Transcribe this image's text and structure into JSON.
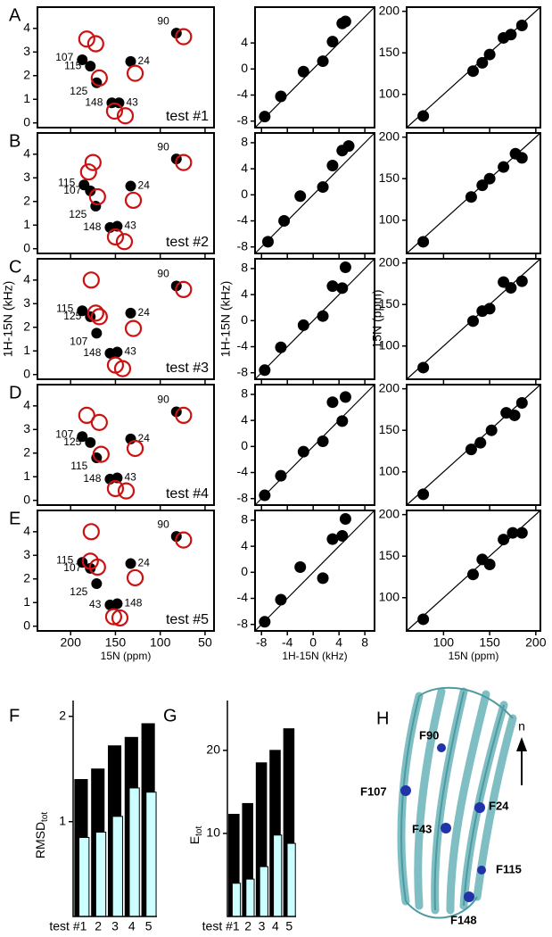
{
  "chart_data": [
    {
      "type": "scatter",
      "panel": "A",
      "annotation": "test #1",
      "xlim": [
        237,
        40
      ],
      "ylim": [
        -0.2,
        4.9
      ],
      "xticks": [
        200,
        150,
        100,
        50
      ],
      "yticks": [
        0,
        1,
        2,
        3,
        4
      ],
      "xtick_labels": false,
      "series": [
        {
          "color": "#000000",
          "marker": "filled",
          "x": [
            82,
            133,
            187,
            178,
            171,
            154,
            146
          ],
          "values": [
            3.8,
            2.6,
            2.67,
            2.4,
            1.7,
            0.85,
            0.85
          ],
          "labels": [
            "90",
            "24",
            "107",
            "115",
            "125",
            "148",
            "43"
          ]
        },
        {
          "color": "#cc1111",
          "marker": "open",
          "x": [
            74,
            182,
            172,
            128,
            168,
            151,
            139
          ],
          "values": [
            3.65,
            3.55,
            3.35,
            2.1,
            1.9,
            0.5,
            0.3
          ]
        }
      ]
    },
    {
      "type": "scatter",
      "xlim": [
        -9,
        9.5
      ],
      "ylim": [
        -9,
        9.5
      ],
      "xticks": [
        -8,
        -4,
        0,
        4,
        8
      ],
      "yticks": [
        -8,
        -4,
        0,
        4
      ],
      "xtick_labels": false,
      "diagonal": true,
      "series": [
        {
          "color": "#000000",
          "marker": "filled",
          "x": [
            -7.5,
            -5,
            -1.5,
            1.5,
            3,
            4.5,
            5
          ],
          "values": [
            -7.3,
            -4.2,
            -0.4,
            1.2,
            4.2,
            7.0,
            7.3
          ]
        }
      ]
    },
    {
      "type": "scatter",
      "xlim": [
        60,
        205
      ],
      "ylim": [
        60,
        205
      ],
      "xticks": [
        100,
        150,
        200
      ],
      "yticks": [
        100,
        150,
        200
      ],
      "xtick_labels": false,
      "diagonal": true,
      "series": [
        {
          "color": "#000000",
          "marker": "filled",
          "x": [
            78,
            132,
            142,
            150,
            165,
            173,
            185
          ],
          "values": [
            74,
            128,
            138,
            148,
            168,
            172,
            183
          ]
        }
      ]
    },
    {
      "type": "scatter",
      "panel": "B",
      "annotation": "test #2",
      "xlim": [
        237,
        40
      ],
      "ylim": [
        -0.2,
        4.9
      ],
      "xticks": [
        200,
        150,
        100,
        50
      ],
      "yticks": [
        0,
        1,
        2,
        3,
        4
      ],
      "xtick_labels": false,
      "series": [
        {
          "color": "#000000",
          "marker": "filled",
          "x": [
            82,
            133,
            185,
            178,
            172,
            156,
            148
          ],
          "values": [
            3.8,
            2.65,
            2.7,
            2.45,
            1.8,
            0.9,
            0.95
          ],
          "labels": [
            "90",
            "24",
            "115",
            "107",
            "125",
            "148",
            "43"
          ]
        },
        {
          "color": "#cc1111",
          "marker": "open",
          "x": [
            74,
            175,
            180,
            130,
            170,
            150,
            140
          ],
          "values": [
            3.65,
            3.65,
            3.25,
            2.05,
            2.2,
            0.5,
            0.3
          ]
        }
      ]
    },
    {
      "type": "scatter",
      "xlim": [
        -9,
        9.5
      ],
      "ylim": [
        -9,
        9.5
      ],
      "xticks": [
        -8,
        -4,
        0,
        4,
        8
      ],
      "yticks": [
        -8,
        -4,
        0,
        4,
        8
      ],
      "xtick_labels": false,
      "diagonal": true,
      "series": [
        {
          "color": "#000000",
          "marker": "filled",
          "x": [
            -7,
            -4.5,
            -2,
            1.5,
            3,
            4.5,
            5.5
          ],
          "values": [
            -7.2,
            -4,
            -0.2,
            1.2,
            4.5,
            6.8,
            7.5
          ]
        }
      ]
    },
    {
      "type": "scatter",
      "xlim": [
        60,
        205
      ],
      "ylim": [
        60,
        205
      ],
      "xticks": [
        100,
        150,
        200
      ],
      "yticks": [
        100,
        150,
        200
      ],
      "xtick_labels": false,
      "diagonal": true,
      "series": [
        {
          "color": "#000000",
          "marker": "filled",
          "x": [
            78,
            130,
            142,
            150,
            165,
            178,
            185
          ],
          "values": [
            74,
            128,
            142,
            150,
            164,
            180,
            175
          ]
        }
      ]
    },
    {
      "type": "scatter",
      "panel": "C",
      "annotation": "test #3",
      "ylabel": "1H-15N (kHz)",
      "xlim": [
        237,
        40
      ],
      "ylim": [
        -0.2,
        4.9
      ],
      "xticks": [
        200,
        150,
        100,
        50
      ],
      "yticks": [
        0,
        1,
        2,
        3,
        4
      ],
      "xtick_labels": false,
      "series": [
        {
          "color": "#000000",
          "marker": "filled",
          "x": [
            82,
            133,
            187,
            178,
            171,
            156,
            148
          ],
          "values": [
            3.75,
            2.6,
            2.7,
            2.45,
            1.75,
            0.9,
            0.95
          ],
          "labels": [
            "90",
            "24",
            "115",
            "125",
            "107",
            "148",
            "43"
          ]
        },
        {
          "color": "#cc1111",
          "marker": "open",
          "x": [
            74,
            177,
            172,
            130,
            168,
            150,
            142
          ],
          "values": [
            3.6,
            4.0,
            2.6,
            1.95,
            2.45,
            0.4,
            0.25
          ]
        }
      ]
    },
    {
      "type": "scatter",
      "ylabel": "1H-15N (kHz)",
      "xlim": [
        -9,
        9.5
      ],
      "ylim": [
        -9,
        9.5
      ],
      "xticks": [
        -8,
        -4,
        0,
        4,
        8
      ],
      "yticks": [
        -8,
        -4,
        0,
        4,
        8
      ],
      "xtick_labels": false,
      "diagonal": true,
      "series": [
        {
          "color": "#000000",
          "marker": "filled",
          "x": [
            -7.5,
            -5,
            -1.5,
            1.5,
            3,
            4.5,
            5
          ],
          "values": [
            -7.6,
            -4.1,
            -0.7,
            0.7,
            5.3,
            5,
            8.2
          ]
        }
      ]
    },
    {
      "type": "scatter",
      "ylabel": "15N (ppm)",
      "xlim": [
        60,
        205
      ],
      "ylim": [
        60,
        205
      ],
      "xticks": [
        100,
        150,
        200
      ],
      "yticks": [
        100,
        150,
        200
      ],
      "xtick_labels": false,
      "diagonal": true,
      "series": [
        {
          "color": "#000000",
          "marker": "filled",
          "x": [
            78,
            132,
            142,
            150,
            165,
            173,
            185
          ],
          "values": [
            74,
            130,
            142,
            145,
            177,
            170,
            178
          ]
        }
      ]
    },
    {
      "type": "scatter",
      "panel": "D",
      "annotation": "test #4",
      "xlim": [
        237,
        40
      ],
      "ylim": [
        -0.2,
        4.9
      ],
      "xticks": [
        200,
        150,
        100,
        50
      ],
      "yticks": [
        0,
        1,
        2,
        3,
        4
      ],
      "xtick_labels": false,
      "series": [
        {
          "color": "#000000",
          "marker": "filled",
          "x": [
            82,
            133,
            187,
            178,
            171,
            156,
            148
          ],
          "values": [
            3.75,
            2.6,
            2.7,
            2.45,
            1.8,
            0.9,
            0.95
          ],
          "labels": [
            "90",
            "24",
            "107",
            "125",
            "115",
            "148",
            "43"
          ]
        },
        {
          "color": "#cc1111",
          "marker": "open",
          "x": [
            74,
            182,
            168,
            128,
            166,
            150,
            138
          ],
          "values": [
            3.6,
            3.6,
            3.3,
            2.2,
            1.95,
            0.5,
            0.4
          ]
        }
      ]
    },
    {
      "type": "scatter",
      "xlim": [
        -9,
        9.5
      ],
      "ylim": [
        -9,
        9.5
      ],
      "xticks": [
        -8,
        -4,
        0,
        4,
        8
      ],
      "yticks": [
        -8,
        -4,
        0,
        4,
        8
      ],
      "xtick_labels": false,
      "diagonal": true,
      "series": [
        {
          "color": "#000000",
          "marker": "filled",
          "x": [
            -7.5,
            -5,
            -1.5,
            1.5,
            3,
            4.5,
            5
          ],
          "values": [
            -7.5,
            -4.5,
            -0.8,
            0.8,
            6.8,
            3.9,
            7.6
          ]
        }
      ]
    },
    {
      "type": "scatter",
      "xlim": [
        60,
        205
      ],
      "ylim": [
        60,
        205
      ],
      "xticks": [
        100,
        150,
        200
      ],
      "yticks": [
        100,
        150,
        200
      ],
      "xtick_labels": false,
      "diagonal": true,
      "series": [
        {
          "color": "#000000",
          "marker": "filled",
          "x": [
            78,
            130,
            140,
            152,
            168,
            177,
            185
          ],
          "values": [
            73,
            127,
            135,
            150,
            171,
            168,
            183
          ]
        }
      ]
    },
    {
      "type": "scatter",
      "panel": "E",
      "annotation": "test #5",
      "xlabel": "15N (ppm)",
      "xlim": [
        237,
        40
      ],
      "ylim": [
        -0.2,
        4.9
      ],
      "xticks": [
        200,
        150,
        100,
        50
      ],
      "yticks": [
        0,
        1,
        2,
        3,
        4
      ],
      "xtick_labels": true,
      "series": [
        {
          "color": "#000000",
          "marker": "filled",
          "x": [
            82,
            133,
            187,
            178,
            171,
            156,
            148
          ],
          "values": [
            3.8,
            2.65,
            2.7,
            2.45,
            1.8,
            0.9,
            0.95
          ],
          "labels": [
            "90",
            "24",
            "115",
            "107",
            "125",
            "43",
            "148"
          ]
        },
        {
          "color": "#cc1111",
          "marker": "open",
          "x": [
            74,
            177,
            178,
            128,
            170,
            152,
            145
          ],
          "values": [
            3.65,
            4.0,
            2.75,
            2.05,
            2.5,
            0.4,
            0.35
          ]
        }
      ]
    },
    {
      "type": "scatter",
      "xlabel": "1H-15N (kHz)",
      "xlim": [
        -9,
        9.5
      ],
      "ylim": [
        -9,
        9.5
      ],
      "xticks": [
        -8,
        -4,
        0,
        4,
        8
      ],
      "yticks": [
        -8,
        -4,
        0,
        4,
        8
      ],
      "xtick_labels": true,
      "diagonal": true,
      "series": [
        {
          "color": "#000000",
          "marker": "filled",
          "x": [
            -7.5,
            -5,
            -2,
            1.5,
            3,
            4.5,
            5
          ],
          "values": [
            -7.6,
            -4.2,
            0.8,
            -0.9,
            5.1,
            5.6,
            8.2
          ]
        }
      ]
    },
    {
      "type": "scatter",
      "xlabel": "15N (ppm)",
      "xlim": [
        60,
        205
      ],
      "ylim": [
        60,
        205
      ],
      "xticks": [
        100,
        150,
        200
      ],
      "yticks": [
        100,
        150,
        200
      ],
      "xtick_labels": true,
      "diagonal": true,
      "series": [
        {
          "color": "#000000",
          "marker": "filled",
          "x": [
            78,
            132,
            142,
            150,
            165,
            175,
            185
          ],
          "values": [
            74,
            128,
            146,
            140,
            170,
            178,
            178
          ]
        }
      ]
    },
    {
      "type": "bar",
      "panel": "F",
      "ylabel": "RMSD",
      "ylabel_sub": "tot",
      "categories": [
        "test #1",
        "2",
        "3",
        "4",
        "5"
      ],
      "ylim": [
        0.1,
        2.15
      ],
      "yticks": [
        1,
        2
      ],
      "series": [
        {
          "color": "#000000",
          "values": [
            1.4,
            1.5,
            1.72,
            1.8,
            1.93
          ]
        },
        {
          "color": "#ccffff",
          "values": [
            0.85,
            0.9,
            1.05,
            1.32,
            1.28
          ]
        }
      ]
    },
    {
      "type": "bar",
      "panel": "G",
      "ylabel": "E",
      "ylabel_sub": "tot",
      "categories": [
        "test #1",
        "2",
        "3",
        "4",
        "5"
      ],
      "ylim": [
        0,
        26
      ],
      "yticks": [
        10,
        20
      ],
      "series": [
        {
          "color": "#000000",
          "values": [
            12.3,
            13.6,
            18.5,
            20,
            22.6
          ]
        },
        {
          "color": "#ccffff",
          "values": [
            4,
            4.5,
            6,
            9.8,
            8.8
          ]
        }
      ]
    }
  ],
  "figure": {
    "panel": "H",
    "axis_label": "n",
    "labels": [
      "F90",
      "F107",
      "F24",
      "F43",
      "F115",
      "F148"
    ]
  }
}
